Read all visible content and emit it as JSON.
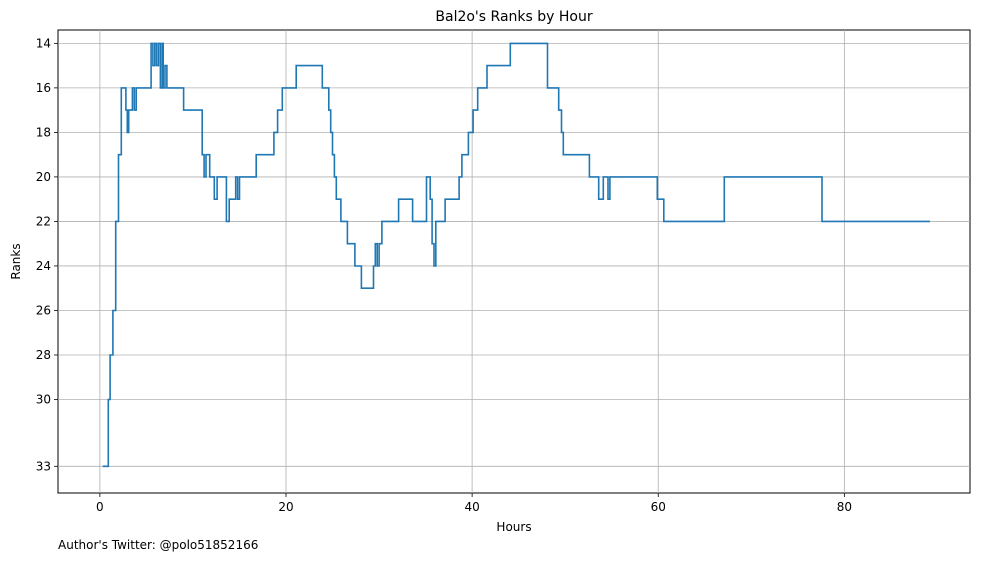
{
  "chart_data": {
    "type": "line",
    "step": "post",
    "title": "Bal2o's Ranks by Hour",
    "xlabel": "Hours",
    "ylabel": "Ranks",
    "xlim": [
      -4.5,
      93.5
    ],
    "ylim": [
      34.2,
      13.4
    ],
    "y_inverted": true,
    "grid": true,
    "xticks": [
      0,
      20,
      40,
      60,
      80
    ],
    "yticks": [
      14,
      16,
      18,
      20,
      22,
      24,
      26,
      28,
      30,
      33
    ],
    "line_color": "#1f77b4",
    "series": [
      {
        "x": [
          0.3,
          0.9,
          1.1,
          1.4,
          1.7,
          2.0,
          2.3,
          2.8,
          2.95,
          3.1,
          3.5,
          3.7,
          3.9,
          4.0,
          4.2,
          4.5,
          5.5,
          5.7,
          5.9,
          6.1,
          6.3,
          6.5,
          6.7,
          6.8,
          7.0,
          7.2,
          7.4,
          9.0,
          10.8,
          11.0,
          11.2,
          11.4,
          11.6,
          11.8,
          12.3,
          12.6,
          13.1,
          13.6,
          13.9,
          14.6,
          14.8,
          15.0,
          15.2,
          16.8,
          18.7,
          19.1,
          19.6,
          20.1,
          21.1,
          21.9,
          23.9,
          24.6,
          24.8,
          25.0,
          25.2,
          25.4,
          25.6,
          25.9,
          26.6,
          27.4,
          28.1,
          29.4,
          29.6,
          29.8,
          30.0,
          30.3,
          30.6,
          32.1,
          33.6,
          35.1,
          35.5,
          35.7,
          35.9,
          36.1,
          36.6,
          37.1,
          38.6,
          38.9,
          39.6,
          40.1,
          40.6,
          41.6,
          44.1,
          48.1,
          49.3,
          49.6,
          49.8,
          50.1,
          52.6,
          53.6,
          54.1,
          54.6,
          54.8,
          55.1,
          59.9,
          60.6,
          60.9,
          67.1,
          77.6,
          89.2
        ],
        "y": [
          33,
          30,
          28,
          26,
          22,
          19,
          16,
          17,
          18,
          17,
          16,
          17,
          16,
          16,
          16,
          16,
          14,
          15,
          14,
          15,
          14,
          16,
          14,
          16,
          15,
          16,
          16,
          17,
          17,
          19,
          20,
          19,
          19,
          20,
          21,
          20,
          20,
          22,
          21,
          20,
          21,
          20,
          20,
          19,
          18,
          17,
          16,
          16,
          15,
          15,
          16,
          17,
          18,
          19,
          20,
          21,
          21,
          22,
          23,
          24,
          25,
          24,
          23,
          24,
          23,
          22,
          22,
          21,
          22,
          20,
          21,
          23,
          24,
          22,
          22,
          21,
          20,
          19,
          18,
          17,
          16,
          15,
          14,
          16,
          17,
          18,
          19,
          19,
          20,
          21,
          20,
          21,
          20,
          20,
          21,
          22,
          22,
          20,
          22,
          22
        ]
      }
    ]
  },
  "footer": {
    "author_note": "Author's Twitter: @polo51852166"
  }
}
